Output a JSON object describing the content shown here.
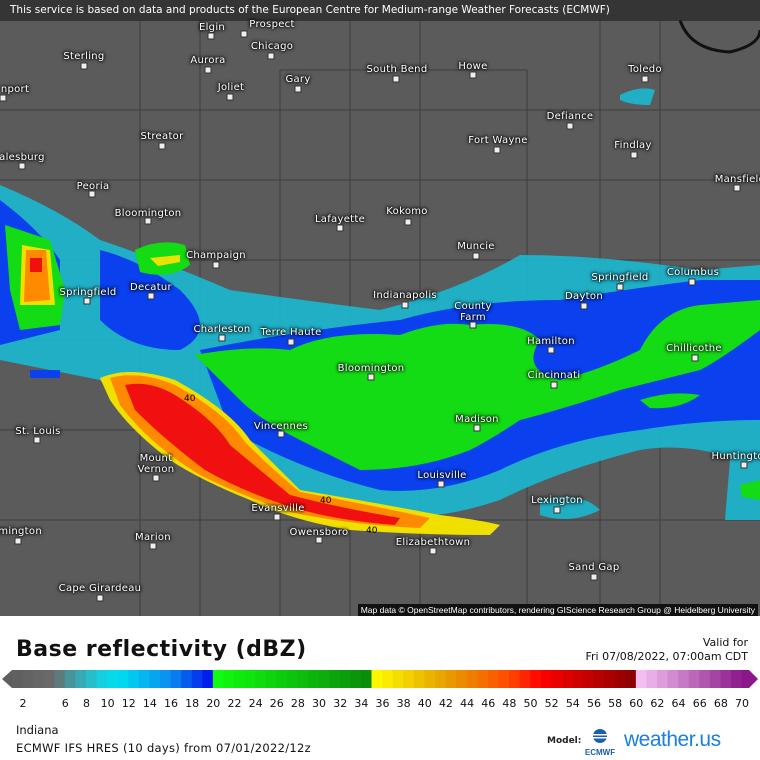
{
  "banner": "This service is based on data and products of the European Centre for Medium-range Weather Forecasts (ECMWF)",
  "attribution": "Map data © OpenStreetMap contributors, rendering GIScience Research Group @ Heidelberg University",
  "cities": [
    {
      "name": "Elgin"
    },
    {
      "name": "Prospect"
    },
    {
      "name": "Chicago"
    },
    {
      "name": "Sterling"
    },
    {
      "name": "Aurora"
    },
    {
      "name": "Joliet"
    },
    {
      "name": "Gary"
    },
    {
      "name": "South Bend"
    },
    {
      "name": "Howe"
    },
    {
      "name": "Toledo"
    },
    {
      "name": "nport"
    },
    {
      "name": "Defiance"
    },
    {
      "name": "Streator"
    },
    {
      "name": "Fort Wayne"
    },
    {
      "name": "Findlay"
    },
    {
      "name": "alesburg"
    },
    {
      "name": "Peoria"
    },
    {
      "name": "Mansfield"
    },
    {
      "name": "Bloomington"
    },
    {
      "name": "Lafayette"
    },
    {
      "name": "Kokomo"
    },
    {
      "name": "Champaign"
    },
    {
      "name": "Muncie"
    },
    {
      "name": "Springfield"
    },
    {
      "name": "Decatur"
    },
    {
      "name": "Springfield"
    },
    {
      "name": "Columbus"
    },
    {
      "name": "Indianapolis"
    },
    {
      "name": "Dayton"
    },
    {
      "name": "County Farm"
    },
    {
      "name": "Charleston"
    },
    {
      "name": "Terre Haute"
    },
    {
      "name": "Hamilton"
    },
    {
      "name": "Chillicothe"
    },
    {
      "name": "Bloomington"
    },
    {
      "name": "Cincinnati"
    },
    {
      "name": "St. Louis"
    },
    {
      "name": "Vincennes"
    },
    {
      "name": "Madison"
    },
    {
      "name": "Mount Vernon"
    },
    {
      "name": "Huntington"
    },
    {
      "name": "Louisville"
    },
    {
      "name": "Lexington"
    },
    {
      "name": "Evansville"
    },
    {
      "name": "Owensboro"
    },
    {
      "name": "Elizabethtown"
    },
    {
      "name": "Marion"
    },
    {
      "name": "rmington"
    },
    {
      "name": "Sand Gap"
    },
    {
      "name": "Cape Girardeau"
    }
  ],
  "contour_labels": [
    "40",
    "40",
    "40"
  ],
  "legend": {
    "title": "Base reflectivity (dBZ)",
    "valid_label": "Valid for",
    "valid_time": "Fri 07/08/2022, 07:00am CDT",
    "ticks": [
      "2",
      "6",
      "8",
      "10",
      "12",
      "14",
      "16",
      "18",
      "20",
      "22",
      "24",
      "26",
      "28",
      "30",
      "32",
      "34",
      "36",
      "38",
      "40",
      "42",
      "44",
      "46",
      "48",
      "50",
      "52",
      "54",
      "56",
      "58",
      "60",
      "62",
      "64",
      "66",
      "68",
      "70"
    ],
    "color_stops": [
      {
        "dbz": 1,
        "color": "#5e5e5e"
      },
      {
        "dbz": 5,
        "color": "#6a6a6a"
      },
      {
        "dbz": 6,
        "color": "#4f8a8f"
      },
      {
        "dbz": 9,
        "color": "#1fc8d8"
      },
      {
        "dbz": 11,
        "color": "#00e0f0"
      },
      {
        "dbz": 16,
        "color": "#0a8cf0"
      },
      {
        "dbz": 19.9,
        "color": "#0010ee"
      },
      {
        "dbz": 20,
        "color": "#10ff10"
      },
      {
        "dbz": 34.9,
        "color": "#0a8a0a"
      },
      {
        "dbz": 35,
        "color": "#ffff00"
      },
      {
        "dbz": 42,
        "color": "#e6a000"
      },
      {
        "dbz": 48,
        "color": "#ff4a00"
      },
      {
        "dbz": 51,
        "color": "#ff0000"
      },
      {
        "dbz": 59.9,
        "color": "#8a0000"
      },
      {
        "dbz": 60,
        "color": "#f8c8f8"
      },
      {
        "dbz": 70,
        "color": "#8a1888"
      }
    ]
  },
  "footer": {
    "region": "Indiana",
    "model_run": "ECMWF IFS HRES (10 days) from  07/01/2022/12z",
    "model_label": "Model:",
    "ecmwf_logo": "ECMWF",
    "brand": "weather.us"
  }
}
